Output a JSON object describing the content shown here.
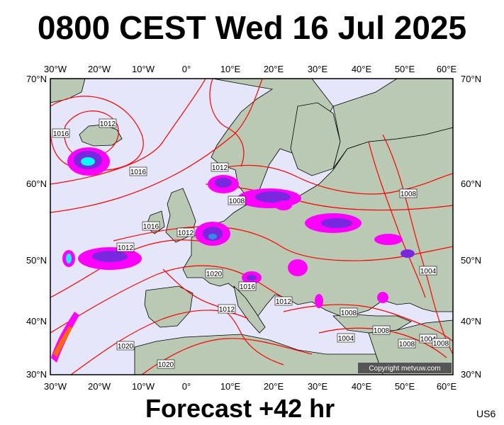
{
  "header": {
    "title": "0800 CEST Wed 16 Jul 2025"
  },
  "footer": {
    "forecast": "Forecast +42 hr",
    "model_code": "US6"
  },
  "map": {
    "copyright": "Copyright metvuw.com",
    "colors": {
      "sea": "#e6e6fa",
      "land": "#b9c9b3",
      "isobar": "#ff0000",
      "precip_light": "#ff00ff",
      "precip_mid": "#7a28e0",
      "precip_heavy": "#2c8fe0",
      "precip_core": "#00ffff"
    },
    "top_lon_labels": [
      "30°W",
      "20°W",
      "10°W",
      "0°",
      "10°E",
      "20°E",
      "30°E",
      "40°E",
      "50°E",
      "60°E"
    ],
    "bottom_lon_labels": [
      "30°W",
      "20°W",
      "10°W",
      "0°",
      "10°E",
      "20°E",
      "30°E",
      "40°E",
      "50°E",
      "60°E"
    ],
    "left_lat_labels": [
      "70°N",
      "60°N",
      "50°N",
      "40°N",
      "30°N"
    ],
    "right_lat_labels": [
      "70°N",
      "60°N",
      "50°N",
      "40°N",
      "30°N"
    ],
    "isobar_labels": [
      "1016",
      "1012",
      "1016",
      "1012",
      "1008",
      "1016",
      "1012",
      "1012",
      "1020",
      "1016",
      "1012",
      "1012",
      "1020",
      "1020",
      "1008",
      "1004",
      "1008",
      "1008",
      "1004",
      "1008",
      "1008",
      "1004"
    ]
  }
}
